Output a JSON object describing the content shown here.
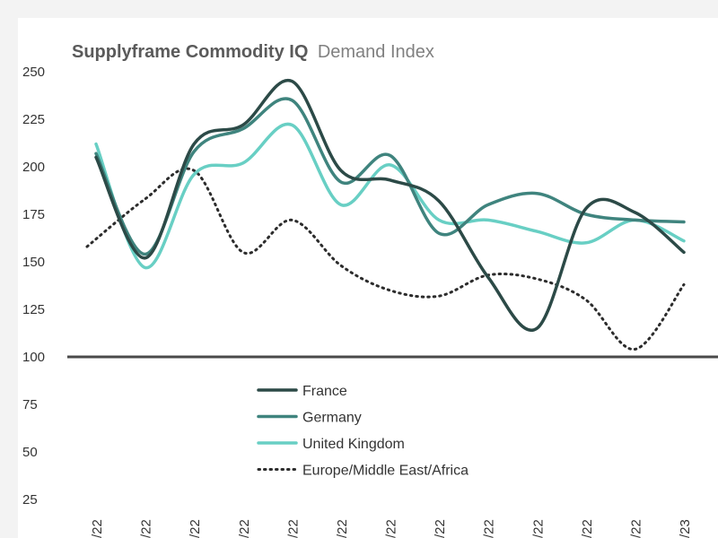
{
  "chart_data": {
    "type": "line",
    "title_bold": "Supplyframe Commodity IQ",
    "title_light": "Demand Index",
    "ylim": [
      25,
      250
    ],
    "yticks": [
      25,
      50,
      75,
      100,
      125,
      150,
      175,
      200,
      225,
      250
    ],
    "baseline": 100,
    "categories": [
      "/22",
      "/22",
      "/22",
      "/22",
      "/22",
      "/22",
      "/22",
      "/22",
      "/22",
      "/22",
      "/22",
      "/22",
      "/23"
    ],
    "series": [
      {
        "name": "France",
        "color": "#2c4a47",
        "dash": "solid",
        "values": [
          205,
          152,
          212,
          222,
          245,
          198,
          193,
          182,
          142,
          115,
          178,
          176,
          155
        ]
      },
      {
        "name": "Germany",
        "color": "#3f847e",
        "dash": "solid",
        "values": [
          207,
          154,
          208,
          220,
          235,
          192,
          206,
          165,
          180,
          186,
          175,
          172,
          171
        ]
      },
      {
        "name": "United Kingdom",
        "color": "#68cfc4",
        "dash": "solid",
        "values": [
          212,
          147,
          196,
          202,
          222,
          180,
          201,
          172,
          172,
          166,
          160,
          172,
          161
        ]
      },
      {
        "name": "Europe/Middle East/Africa",
        "color": "#2c2c2c",
        "dash": "dotted",
        "values": [
          158,
          183,
          198,
          155,
          172,
          148,
          135,
          132,
          143,
          141,
          130,
          104,
          138
        ]
      }
    ],
    "legend_position": "center"
  }
}
